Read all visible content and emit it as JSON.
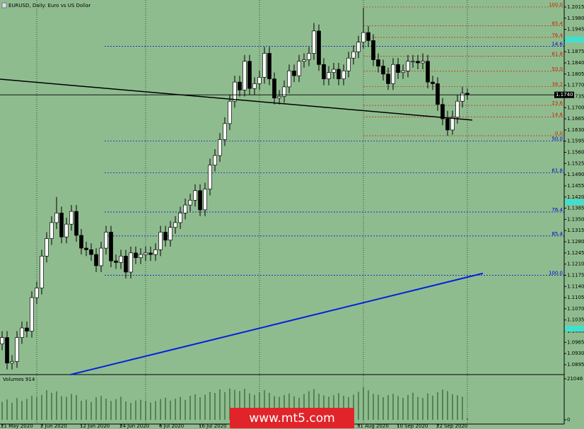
{
  "chart_data": {
    "type": "candlestick",
    "title": "EURUSD, Daily: Euro vs US Dollar",
    "background": "#8fbc8f",
    "categories": [
      "21 May 2020",
      null,
      null,
      null,
      null,
      null,
      null,
      null,
      "2 Jun 2020",
      null,
      null,
      null,
      null,
      null,
      null,
      null,
      "12 Jun 2020",
      null,
      null,
      null,
      null,
      null,
      null,
      null,
      "24 Jun 2020",
      null,
      null,
      null,
      null,
      null,
      null,
      null,
      "6 Jul 2020",
      null,
      null,
      null,
      null,
      null,
      null,
      null,
      "16 Jul 2020",
      null,
      null,
      null,
      null,
      null,
      null,
      null,
      null,
      null,
      null,
      null,
      null,
      null,
      null,
      null,
      null,
      null,
      null,
      null,
      null,
      null,
      null,
      null,
      null,
      null,
      null,
      null,
      null,
      null,
      null,
      null,
      "31 Aug 2020",
      null,
      null,
      null,
      null,
      null,
      null,
      null,
      "10 Sep 2020",
      null,
      null,
      null,
      null,
      null,
      null,
      null,
      "22 Sep 2020",
      null,
      null,
      null,
      null,
      null,
      null
    ],
    "open": [
      1.096,
      1.098,
      1.09,
      1.0905,
      1.098,
      1.101,
      1.1,
      1.1105,
      1.1135,
      1.1235,
      1.129,
      1.134,
      1.137,
      1.1295,
      1.1335,
      1.1375,
      1.13,
      1.126,
      1.1255,
      1.124,
      1.1205,
      1.126,
      1.131,
      1.122,
      1.1215,
      1.1235,
      1.1185,
      1.1245,
      1.123,
      1.124,
      1.1245,
      1.124,
      1.1255,
      1.131,
      1.1285,
      1.1325,
      1.134,
      1.137,
      1.1395,
      1.141,
      1.144,
      1.138,
      1.1445,
      1.152,
      1.155,
      1.16,
      1.165,
      1.172,
      1.178,
      1.1755,
      1.1845,
      1.176,
      1.1775,
      1.1795,
      1.187,
      1.179,
      1.173,
      1.1735,
      1.1765,
      1.1815,
      1.18,
      1.1845,
      1.185,
      1.187,
      1.194,
      1.1835,
      1.179,
      1.181,
      1.182,
      1.179,
      1.1815,
      1.1855,
      1.1875,
      1.1905,
      1.1935,
      1.191,
      1.185,
      1.183,
      1.1805,
      1.1775,
      1.1835,
      1.181,
      1.1815,
      1.1845,
      1.1845,
      1.184,
      1.1845,
      1.178,
      1.1775,
      1.171,
      1.1665,
      1.163,
      1.167,
      1.172,
      1.1745
    ],
    "high": [
      1.1,
      1.1,
      1.0925,
      1.1,
      1.103,
      1.103,
      1.1125,
      1.1155,
      1.1255,
      1.131,
      1.136,
      1.142,
      1.139,
      1.1355,
      1.1395,
      1.1395,
      1.132,
      1.128,
      1.1275,
      1.126,
      1.128,
      1.133,
      1.133,
      1.124,
      1.1255,
      1.1255,
      1.1265,
      1.1265,
      1.126,
      1.1265,
      1.1265,
      1.1275,
      1.133,
      1.133,
      1.1345,
      1.136,
      1.139,
      1.1415,
      1.143,
      1.146,
      1.146,
      1.1465,
      1.154,
      1.157,
      1.162,
      1.167,
      1.174,
      1.18,
      1.18,
      1.1865,
      1.1865,
      1.1795,
      1.1815,
      1.189,
      1.189,
      1.181,
      1.1755,
      1.1785,
      1.1835,
      1.1835,
      1.1865,
      1.187,
      1.189,
      1.1965,
      1.196,
      1.1855,
      1.183,
      1.184,
      1.184,
      1.1835,
      1.1875,
      1.1895,
      1.1925,
      1.2012,
      1.1955,
      1.193,
      1.187,
      1.185,
      1.1825,
      1.1855,
      1.1855,
      1.1835,
      1.1865,
      1.1865,
      1.1865,
      1.187,
      1.1865,
      1.18,
      1.1795,
      1.173,
      1.169,
      1.169,
      1.174,
      1.1765,
      1.176
    ],
    "low": [
      1.094,
      1.088,
      1.088,
      1.0885,
      1.096,
      1.098,
      1.098,
      1.1085,
      1.1115,
      1.1215,
      1.127,
      1.132,
      1.1275,
      1.1275,
      1.1315,
      1.128,
      1.124,
      1.1235,
      1.122,
      1.1185,
      1.1185,
      1.124,
      1.12,
      1.1195,
      1.1195,
      1.1165,
      1.1165,
      1.121,
      1.121,
      1.122,
      1.122,
      1.122,
      1.1235,
      1.1265,
      1.1265,
      1.1305,
      1.132,
      1.135,
      1.1375,
      1.139,
      1.136,
      1.136,
      1.1425,
      1.15,
      1.153,
      1.158,
      1.163,
      1.17,
      1.1735,
      1.1735,
      1.174,
      1.174,
      1.1755,
      1.1775,
      1.177,
      1.171,
      1.171,
      1.1715,
      1.1745,
      1.178,
      1.178,
      1.1825,
      1.183,
      1.185,
      1.1815,
      1.177,
      1.177,
      1.179,
      1.177,
      1.177,
      1.1795,
      1.1835,
      1.1855,
      1.1885,
      1.189,
      1.183,
      1.181,
      1.1785,
      1.1755,
      1.1755,
      1.179,
      1.179,
      1.1795,
      1.1825,
      1.182,
      1.182,
      1.176,
      1.1755,
      1.169,
      1.1645,
      1.1612,
      1.1615,
      1.165,
      1.17,
      1.1725
    ],
    "close": [
      1.098,
      1.09,
      1.0905,
      1.098,
      1.101,
      1.1,
      1.1105,
      1.1135,
      1.1235,
      1.129,
      1.134,
      1.137,
      1.1295,
      1.1335,
      1.1375,
      1.13,
      1.126,
      1.1255,
      1.124,
      1.1205,
      1.126,
      1.131,
      1.122,
      1.1215,
      1.1235,
      1.1185,
      1.1245,
      1.123,
      1.124,
      1.1245,
      1.124,
      1.1255,
      1.131,
      1.1285,
      1.1325,
      1.134,
      1.137,
      1.1395,
      1.141,
      1.144,
      1.138,
      1.1445,
      1.152,
      1.155,
      1.16,
      1.165,
      1.172,
      1.178,
      1.1755,
      1.1845,
      1.176,
      1.1775,
      1.1795,
      1.187,
      1.179,
      1.173,
      1.1735,
      1.1765,
      1.1815,
      1.18,
      1.1845,
      1.185,
      1.187,
      1.194,
      1.1835,
      1.179,
      1.181,
      1.182,
      1.179,
      1.1815,
      1.1855,
      1.1875,
      1.1905,
      1.1935,
      1.191,
      1.185,
      1.183,
      1.1805,
      1.1775,
      1.1835,
      1.181,
      1.1815,
      1.1845,
      1.1845,
      1.184,
      1.1845,
      1.178,
      1.1775,
      1.171,
      1.1665,
      1.163,
      1.167,
      1.172,
      1.1745,
      1.174
    ],
    "current_price": {
      "value": 1.174,
      "label": "1.1740"
    },
    "ylim": [
      1.0864,
      1.2037
    ],
    "yticks": [
      1.0895,
      {
        "value": 1.093,
        "label": "1.0930"
      },
      1.0965,
      {
        "value": 1.1,
        "label": "1.1000"
      },
      1.1035,
      {
        "value": 1.107,
        "label": "1.1070"
      },
      1.1105,
      {
        "value": 1.114,
        "label": "1.1140"
      },
      1.1175,
      {
        "value": 1.121,
        "label": "1.1210"
      },
      1.1245,
      {
        "value": 1.128,
        "label": "1.1280"
      },
      1.1315,
      {
        "value": 1.135,
        "label": "1.1350"
      },
      1.1385,
      {
        "value": 1.142,
        "label": "1.1420"
      },
      1.1455,
      {
        "value": 1.149,
        "label": "1.1490"
      },
      1.1525,
      {
        "value": 1.156,
        "label": "1.1560"
      },
      1.1595,
      {
        "value": 1.163,
        "label": "1.1630"
      },
      1.1665,
      {
        "value": 1.17,
        "label": "1.1700"
      },
      1.1735,
      {
        "value": 1.177,
        "label": "1.1770"
      },
      1.1805,
      {
        "value": 1.184,
        "label": "1.1840"
      },
      1.1875,
      {
        "value": 1.191,
        "label": "1.1910"
      },
      1.1945,
      {
        "value": 1.198,
        "label": "1.1980"
      },
      1.2015
    ],
    "fibonacci": [
      {
        "color": "#0000cc",
        "levels": [
          {
            "label": "14.6",
            "value": 1.1892
          },
          {
            "label": "50.0",
            "value": 1.1595
          },
          {
            "label": "61.8",
            "value": 1.1496
          },
          {
            "label": "76.4",
            "value": 1.1373
          },
          {
            "label": "85.4",
            "value": 1.1298
          },
          {
            "label": "100.0",
            "value": 1.1175
          }
        ]
      },
      {
        "color": "#cc2200",
        "levels": [
          {
            "label": "100.0",
            "value": 1.2015
          },
          {
            "label": "85.4",
            "value": 1.1956
          },
          {
            "label": "76.4",
            "value": 1.192
          },
          {
            "label": "61.8",
            "value": 1.1861
          },
          {
            "label": "50.0",
            "value": 1.1814
          },
          {
            "label": "38.2",
            "value": 1.1766
          },
          {
            "label": "23.6",
            "value": 1.1707
          },
          {
            "label": "14.6",
            "value": 1.1671
          },
          {
            "label": "0.0",
            "value": 1.1612
          }
        ]
      }
    ],
    "trendlines": [
      {
        "color": "#000000",
        "values": [
          1.1789,
          1.1661
        ]
      },
      {
        "color": "#0022dd",
        "values": [
          1.0864,
          1.1181
        ]
      }
    ],
    "volume_label": "Volumes",
    "volumes": [
      9200,
      10500,
      8800,
      11200,
      9700,
      10800,
      12400,
      11500,
      12800,
      15200,
      13900,
      14600,
      12100,
      11800,
      13300,
      12700,
      9800,
      10400,
      9200,
      11600,
      12300,
      10900,
      9700,
      10600,
      11900,
      9400,
      8700,
      9900,
      10300,
      9800,
      8900,
      9600,
      10700,
      11300,
      9900,
      10800,
      11700,
      10200,
      12400,
      13100,
      11600,
      12900,
      14300,
      13800,
      15600,
      14200,
      16100,
      15400,
      14800,
      15900,
      13600,
      12800,
      14100,
      15300,
      13900,
      12200,
      11800,
      12700,
      13500,
      12100,
      11400,
      13200,
      14700,
      15800,
      13400,
      12500,
      11900,
      12600,
      13700,
      12300,
      11700,
      12900,
      14400,
      16800,
      15100,
      13300,
      12900,
      11600,
      12700,
      13400,
      12200,
      11300,
      12800,
      13900,
      11800,
      11200,
      13600,
      12400,
      14200,
      15500,
      14800,
      13100,
      12600,
      11900,
      914
    ],
    "volume_ylim": [
      0,
      21046
    ],
    "volume_yticks": [
      0,
      21046
    ],
    "watermark": "www.mt5.com"
  }
}
